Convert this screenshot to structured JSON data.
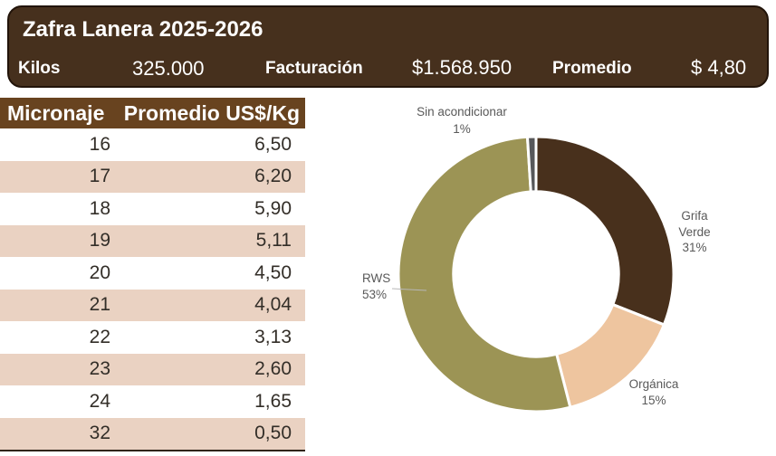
{
  "banner": {
    "title": "Zafra Lanera 2025-2026",
    "stats": [
      {
        "label": "Kilos",
        "value": "325.000"
      },
      {
        "label": "Facturación",
        "value": "$1.568.950"
      },
      {
        "label": "Promedio",
        "value": "$ 4,80"
      }
    ]
  },
  "chart_data": [
    {
      "type": "pie",
      "subtype": "donut",
      "title": "",
      "categories": [
        "Grifa Verde",
        "Orgánica",
        "RWS",
        "Sin acondicionar"
      ],
      "values": [
        31,
        15,
        53,
        1
      ],
      "unit": "%",
      "colors": [
        "#48301c",
        "#eec59f",
        "#9c9455",
        "#57585a"
      ],
      "start_angle_deg": 0,
      "direction": "clockwise",
      "inner_radius_ratio": 0.6,
      "legend": "none",
      "labels": [
        {
          "name": "grifa-verde",
          "lines": [
            "Grifa",
            "Verde",
            "31%"
          ]
        },
        {
          "name": "organica",
          "lines": [
            "Orgánica",
            "15%"
          ]
        },
        {
          "name": "rws",
          "lines": [
            "RWS",
            "53%"
          ],
          "leader_line": true
        },
        {
          "name": "sin-acondicionar",
          "lines": [
            "Sin acondicionar",
            "1%"
          ]
        }
      ]
    },
    {
      "type": "table",
      "columns": [
        "Micronaje",
        "Promedio US$/Kg"
      ],
      "rows": [
        [
          "16",
          "6,50"
        ],
        [
          "17",
          "6,20"
        ],
        [
          "18",
          "5,90"
        ],
        [
          "19",
          "5,11"
        ],
        [
          "20",
          "4,50"
        ],
        [
          "21",
          "4,04"
        ],
        [
          "22",
          "3,13"
        ],
        [
          "23",
          "2,60"
        ],
        [
          "24",
          "1,65"
        ],
        [
          "32",
          "0,50"
        ]
      ]
    }
  ],
  "palette": {
    "banner_bg": "#46301d",
    "banner_border": "#22140a",
    "table_header_bg": "#68431f",
    "table_alt_row_bg": "#ead2c2",
    "chart_label_text": "#595959",
    "leader_line": "#b7b7b7"
  }
}
